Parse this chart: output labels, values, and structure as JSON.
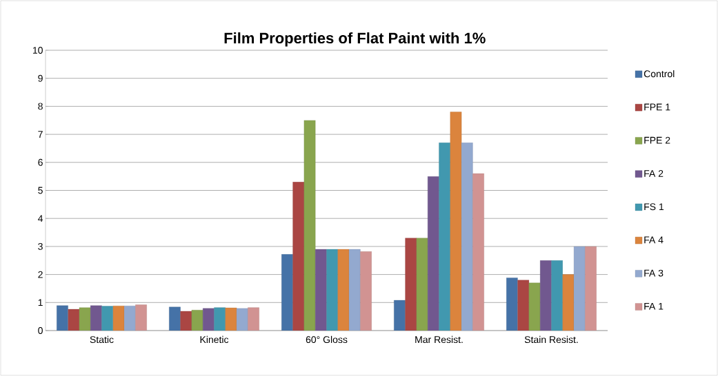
{
  "chart_data": {
    "type": "bar",
    "title": "Film Properties of Flat Paint with 1%",
    "categories": [
      "Static",
      "Kinetic",
      "60° Gloss",
      "Mar Resist.",
      "Stain Resist."
    ],
    "series": [
      {
        "name": "Control",
        "color": "#4572a7",
        "values": [
          0.89,
          0.84,
          2.72,
          1.08,
          1.88
        ]
      },
      {
        "name": "FPE 1",
        "color": "#aa4643",
        "values": [
          0.76,
          0.69,
          5.3,
          3.3,
          1.8
        ]
      },
      {
        "name": "FPE 2",
        "color": "#89a54e",
        "values": [
          0.82,
          0.73,
          7.5,
          3.3,
          1.7
        ]
      },
      {
        "name": "FA 2",
        "color": "#71588f",
        "values": [
          0.89,
          0.79,
          2.9,
          5.5,
          2.5
        ]
      },
      {
        "name": "FS 1",
        "color": "#4198af",
        "values": [
          0.87,
          0.82,
          2.9,
          6.7,
          2.5
        ]
      },
      {
        "name": "FA 4",
        "color": "#db843d",
        "values": [
          0.88,
          0.81,
          2.9,
          7.8,
          2.0
        ]
      },
      {
        "name": "FA 3",
        "color": "#93a9cf",
        "values": [
          0.88,
          0.79,
          2.9,
          6.7,
          3.0
        ]
      },
      {
        "name": "FA 1",
        "color": "#d19392",
        "values": [
          0.92,
          0.82,
          2.82,
          5.6,
          3.0
        ]
      }
    ],
    "ylim": [
      0,
      10
    ],
    "yticks": [
      0,
      1,
      2,
      3,
      4,
      5,
      6,
      7,
      8,
      9,
      10
    ],
    "grid": "y",
    "legend": "right"
  }
}
